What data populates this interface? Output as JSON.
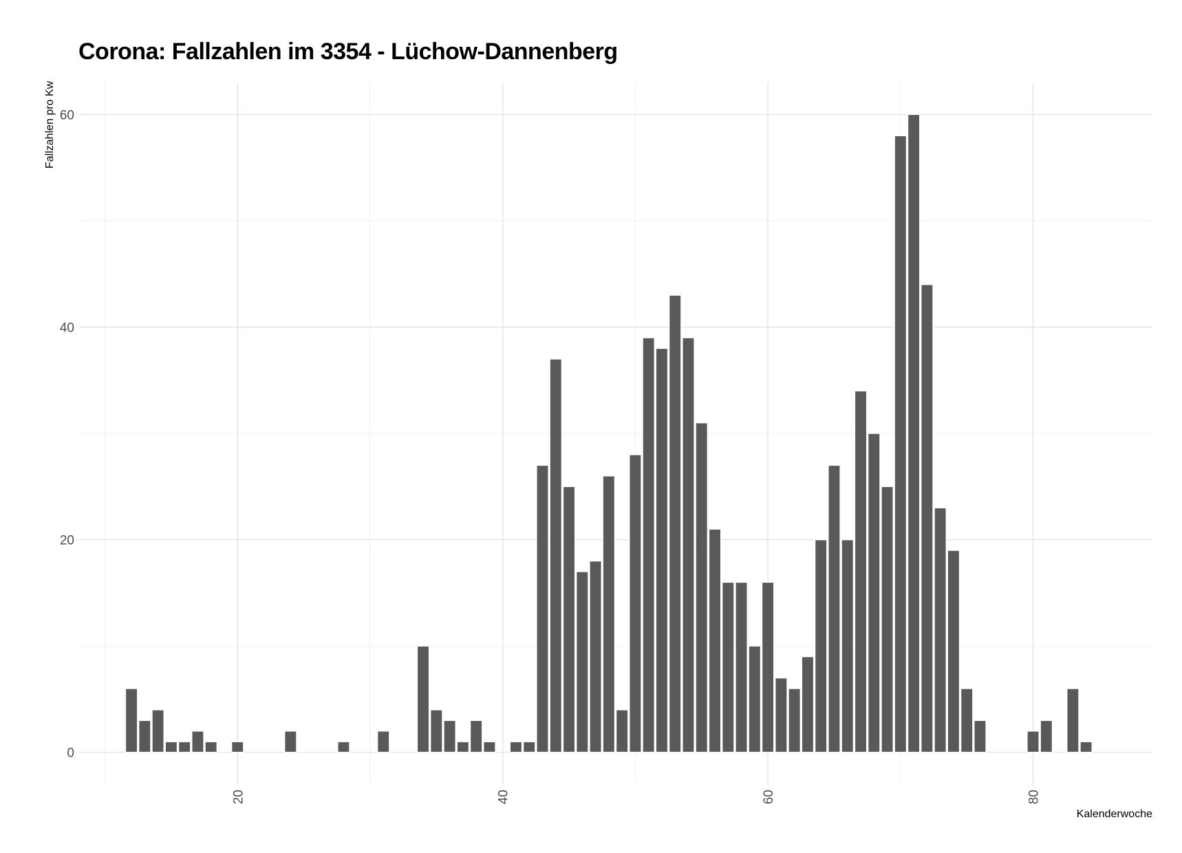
{
  "chart_data": {
    "type": "bar",
    "title": "Corona: Fallzahlen im 3354 - Lüchow-Dannenberg",
    "xlabel": "Kalenderwoche",
    "ylabel": "Fallzahlen pro Kw",
    "xlim": [
      8,
      89
    ],
    "ylim": [
      -3,
      63
    ],
    "xticks": [
      20,
      40,
      60,
      80
    ],
    "yticks": [
      0,
      20,
      40,
      60
    ],
    "grid": true,
    "bar_color": "#595959",
    "x": [
      12,
      13,
      14,
      15,
      16,
      17,
      18,
      20,
      24,
      28,
      31,
      34,
      35,
      36,
      37,
      38,
      39,
      41,
      42,
      43,
      44,
      45,
      46,
      47,
      48,
      49,
      50,
      51,
      52,
      53,
      54,
      55,
      56,
      57,
      58,
      59,
      60,
      61,
      62,
      63,
      64,
      65,
      66,
      67,
      68,
      69,
      70,
      71,
      72,
      73,
      74,
      75,
      76,
      80,
      81,
      83,
      84
    ],
    "values": [
      6,
      3,
      4,
      1,
      1,
      2,
      1,
      1,
      2,
      1,
      2,
      10,
      4,
      3,
      1,
      3,
      1,
      1,
      1,
      27,
      37,
      25,
      17,
      18,
      26,
      4,
      28,
      39,
      38,
      43,
      39,
      31,
      21,
      16,
      16,
      10,
      16,
      7,
      6,
      9,
      20,
      27,
      20,
      34,
      30,
      25,
      58,
      60,
      44,
      23,
      19,
      6,
      3,
      2,
      3,
      6,
      1
    ]
  }
}
